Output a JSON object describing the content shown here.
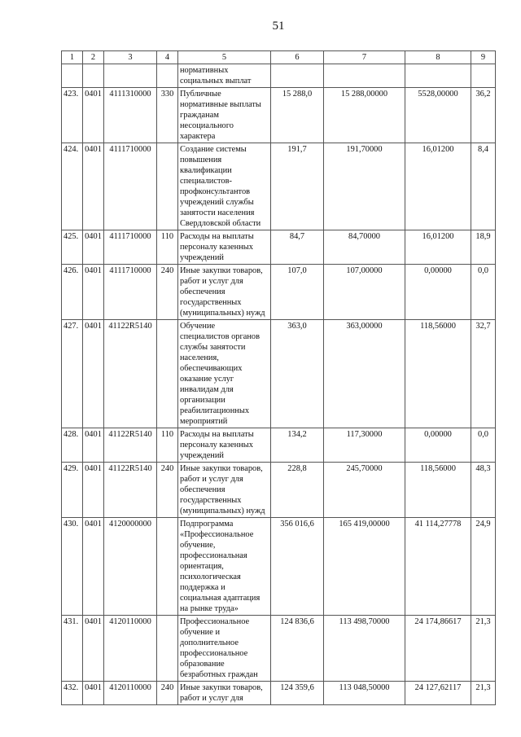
{
  "page_number": "51",
  "table": {
    "headers": [
      "1",
      "2",
      "3",
      "4",
      "5",
      "6",
      "7",
      "8",
      "9"
    ],
    "rows": [
      {
        "c1": "",
        "c2": "",
        "c3": "",
        "c4": "",
        "c5": "нормативных\nсоциальных выплат",
        "c6": "",
        "c7": "",
        "c8": "",
        "c9": ""
      },
      {
        "c1": "423.",
        "c2": "0401",
        "c3": "4111310000",
        "c4": "330",
        "c5": "Публичные\nнормативные выплаты\nгражданам\nнесоциального\nхарактера",
        "c6": "15 288,0",
        "c7": "15 288,00000",
        "c8": "5528,00000",
        "c9": "36,2"
      },
      {
        "c1": "424.",
        "c2": "0401",
        "c3": "4111710000",
        "c4": "",
        "c5": "Создание системы\nповышения\nквалификации\nспециалистов-\nпрофконсультантов\nучреждений службы\nзанятости населения\nСвердловской области",
        "c6": "191,7",
        "c7": "191,70000",
        "c8": "16,01200",
        "c9": "8,4"
      },
      {
        "c1": "425.",
        "c2": "0401",
        "c3": "4111710000",
        "c4": "110",
        "c5": "Расходы на выплаты\nперсоналу казенных\nучреждений",
        "c6": "84,7",
        "c7": "84,70000",
        "c8": "16,01200",
        "c9": "18,9"
      },
      {
        "c1": "426.",
        "c2": "0401",
        "c3": "4111710000",
        "c4": "240",
        "c5": "Иные закупки товаров,\nработ и услуг для\nобеспечения\nгосударственных\n(муниципальных) нужд",
        "c6": "107,0",
        "c7": "107,00000",
        "c8": "0,00000",
        "c9": "0,0"
      },
      {
        "c1": "427.",
        "c2": "0401",
        "c3": "41122R5140",
        "c4": "",
        "c5": "Обучение\nспециалистов органов\nслужбы занятости\nнаселения,\nобеспечивающих\nоказание услуг\nинвалидам для\nорганизации\nреабилитационных\nмероприятий",
        "c6": "363,0",
        "c7": "363,00000",
        "c8": "118,56000",
        "c9": "32,7"
      },
      {
        "c1": "428.",
        "c2": "0401",
        "c3": "41122R5140",
        "c4": "110",
        "c5": "Расходы на выплаты\nперсоналу казенных\nучреждений",
        "c6": "134,2",
        "c7": "117,30000",
        "c8": "0,00000",
        "c9": "0,0"
      },
      {
        "c1": "429.",
        "c2": "0401",
        "c3": "41122R5140",
        "c4": "240",
        "c5": "Иные закупки товаров,\nработ и услуг для\nобеспечения\nгосударственных\n(муниципальных) нужд",
        "c6": "228,8",
        "c7": "245,70000",
        "c8": "118,56000",
        "c9": "48,3"
      },
      {
        "c1": "430.",
        "c2": "0401",
        "c3": "4120000000",
        "c4": "",
        "c5": "Подпрограмма\n«Профессиональное\nобучение,\nпрофессиональная\nориентация,\nпсихологическая\nподдержка и\nсоциальная адаптация\nна рынке труда»",
        "c6": "356 016,6",
        "c7": "165 419,00000",
        "c8": "41 114,27778",
        "c9": "24,9"
      },
      {
        "c1": "431.",
        "c2": "0401",
        "c3": "4120110000",
        "c4": "",
        "c5": "Профессиональное\nобучение и\nдополнительное\nпрофессиональное\nобразование\nбезработных граждан",
        "c6": "124 836,6",
        "c7": "113 498,70000",
        "c8": "24 174,86617",
        "c9": "21,3"
      },
      {
        "c1": "432.",
        "c2": "0401",
        "c3": "4120110000",
        "c4": "240",
        "c5": "Иные закупки товаров,\nработ и услуг для",
        "c6": "124 359,6",
        "c7": "113 048,50000",
        "c8": "24 127,62117",
        "c9": "21,3"
      }
    ]
  }
}
